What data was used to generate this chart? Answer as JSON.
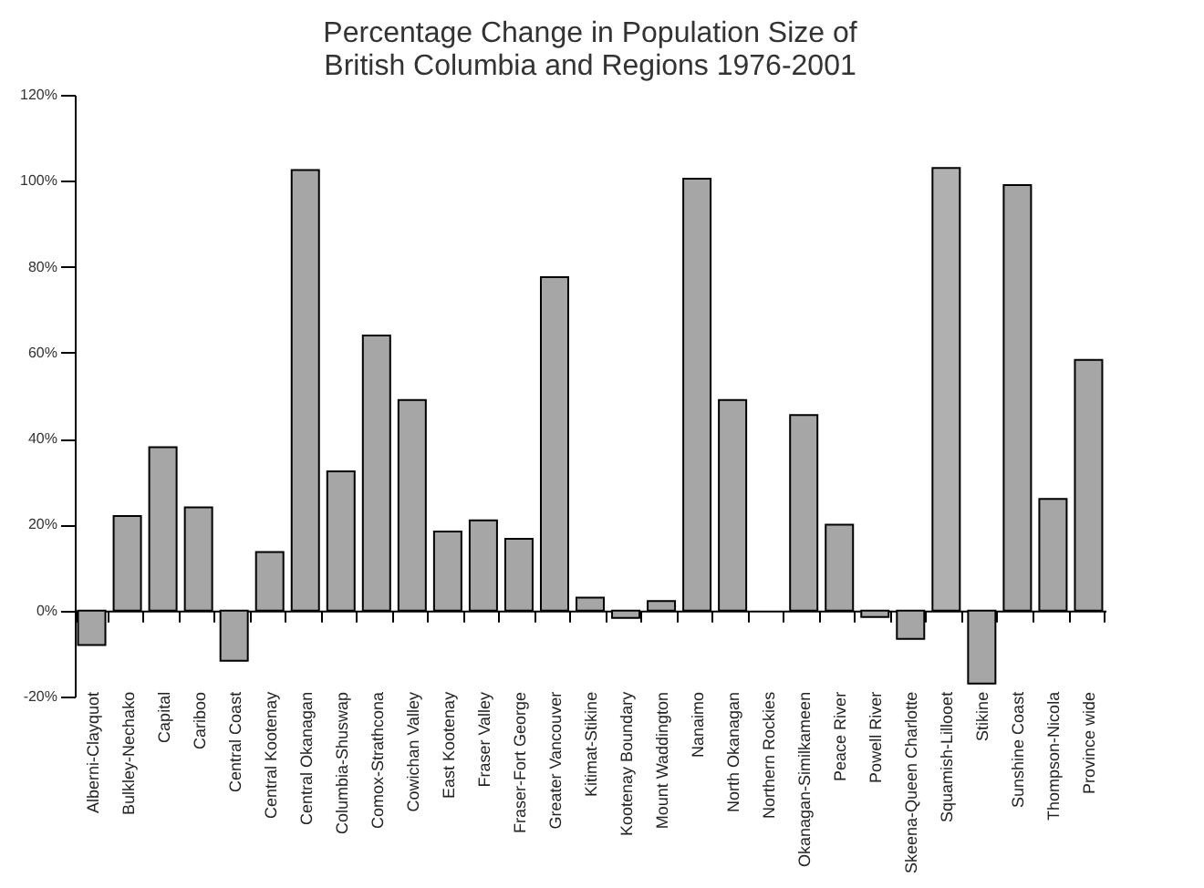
{
  "chart_data": {
    "type": "bar",
    "title": "Percentage Change in Population Size of\nBritish Columbia and Regions 1976-2001",
    "categories": [
      "Alberni-Clayquot",
      "Bulkley-Nechako",
      "Capital",
      "Cariboo",
      "Central Coast",
      "Central Kootenay",
      "Central Okanagan",
      "Columbia-Shuswap",
      "Comox-Strathcona",
      "Cowichan Valley",
      "East Kootenay",
      "Fraser Valley",
      "Fraser-Fort George",
      "Greater Vancouver",
      "Kitimat-Stikine",
      "Kootenay Boundary",
      "Mount Waddington",
      "Nanaimo",
      "North Okanagan",
      "Northern Rockies",
      "Okanagan-Similkameen",
      "Peace River",
      "Powell River",
      "Skeena-Queen Charlotte",
      "Squamish-Lillooet",
      "Stikine",
      "Sunshine Coast",
      "Thompson-Nicola",
      "Province wide"
    ],
    "values": [
      -8,
      22,
      38,
      24,
      -11.7,
      13.6,
      102.5,
      32.4,
      64,
      49,
      18.4,
      21,
      16.7,
      77.6,
      3,
      -1.7,
      2.2,
      100.5,
      49,
      null,
      45.5,
      20,
      -1.5,
      -6.6,
      103,
      -17,
      99,
      26,
      58.3
    ],
    "colors": [
      "#a6a6a6",
      "#a6a6a6",
      "#a6a6a6",
      "#a6a6a6",
      "#a6a6a6",
      "#a6a6a6",
      "#a6a6a6",
      "#a6a6a6",
      "#a6a6a6",
      "#a6a6a6",
      "#a6a6a6",
      "#a6a6a6",
      "#a6a6a6",
      "#a6a6a6",
      "#a6a6a6",
      "#a6a6a6",
      "#a6a6a6",
      "#a6a6a6",
      "#a6a6a6",
      "#a6a6a6",
      "#a6a6a6",
      "#a6a6a6",
      "#a6a6a6",
      "#a6a6a6",
      "#b0b0b0",
      "#a6a6a6",
      "#a6a6a6",
      "#a6a6a6",
      "#a6a6a6"
    ],
    "ylim": [
      -20,
      120
    ],
    "yticks": [
      {
        "value": -20,
        "label": "-20%"
      },
      {
        "value": 0,
        "label": "0%"
      },
      {
        "value": 20,
        "label": "20%"
      },
      {
        "value": 40,
        "label": "40%"
      },
      {
        "value": 60,
        "label": "60%"
      },
      {
        "value": 80,
        "label": "80%"
      },
      {
        "value": 100,
        "label": "100%"
      },
      {
        "value": 120,
        "label": "120%"
      }
    ]
  }
}
